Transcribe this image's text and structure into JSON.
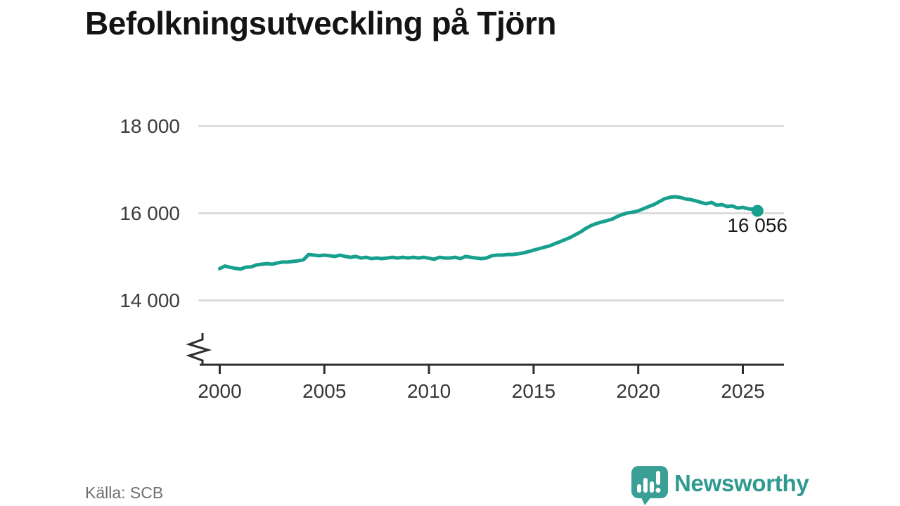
{
  "title": "Befolkningsutveckling på Tjörn",
  "source": "Källa: SCB",
  "branding": {
    "name": "Newsworthy",
    "wordmark_color": "#2e9a8f",
    "icon_color": "#3aa095",
    "icon": "speech-bubble-bar-chart-icon"
  },
  "chart_data": {
    "type": "line",
    "title": "Befolkningsutveckling på Tjörn",
    "xlabel": "",
    "ylabel": "",
    "grid": "horizontal",
    "axis_break": "y-axis broken below 14 000 (zigzag marker at axis start)",
    "xlim": [
      1999,
      2027
    ],
    "ylim": [
      13800,
      18300
    ],
    "line_color": "#17a08e",
    "grid_color": "#dcdcdc",
    "axis_color": "#2e2e2e",
    "end_label": "16 056",
    "end_value": 16056,
    "y_ticks": [
      {
        "value": 14000,
        "label": "14 000"
      },
      {
        "value": 16000,
        "label": "16 000"
      },
      {
        "value": 18000,
        "label": "18 000"
      }
    ],
    "x_ticks": [
      {
        "value": 2000,
        "label": "2000"
      },
      {
        "value": 2005,
        "label": "2005"
      },
      {
        "value": 2010,
        "label": "2010"
      },
      {
        "value": 2015,
        "label": "2015"
      },
      {
        "value": 2020,
        "label": "2020"
      },
      {
        "value": 2025,
        "label": "2025"
      }
    ],
    "series": [
      {
        "name": "Befolkning på Tjörn",
        "points": [
          [
            2000,
            14730
          ],
          [
            2000.25,
            14790
          ],
          [
            2000.5,
            14760
          ],
          [
            2000.75,
            14735
          ],
          [
            2001,
            14720
          ],
          [
            2001.25,
            14765
          ],
          [
            2001.5,
            14770
          ],
          [
            2001.75,
            14815
          ],
          [
            2002,
            14830
          ],
          [
            2002.25,
            14845
          ],
          [
            2002.5,
            14830
          ],
          [
            2002.75,
            14860
          ],
          [
            2003,
            14880
          ],
          [
            2003.25,
            14880
          ],
          [
            2003.5,
            14895
          ],
          [
            2003.75,
            14910
          ],
          [
            2004,
            14930
          ],
          [
            2004.25,
            15055
          ],
          [
            2004.5,
            15040
          ],
          [
            2004.75,
            15025
          ],
          [
            2005,
            15040
          ],
          [
            2005.25,
            15025
          ],
          [
            2005.5,
            15010
          ],
          [
            2005.75,
            15040
          ],
          [
            2006,
            15010
          ],
          [
            2006.25,
            14990
          ],
          [
            2006.5,
            15010
          ],
          [
            2006.75,
            14975
          ],
          [
            2007,
            14990
          ],
          [
            2007.25,
            14960
          ],
          [
            2007.5,
            14975
          ],
          [
            2007.75,
            14960
          ],
          [
            2008,
            14975
          ],
          [
            2008.25,
            14990
          ],
          [
            2008.5,
            14975
          ],
          [
            2008.75,
            14990
          ],
          [
            2009,
            14975
          ],
          [
            2009.25,
            14990
          ],
          [
            2009.5,
            14975
          ],
          [
            2009.75,
            14990
          ],
          [
            2010,
            14970
          ],
          [
            2010.25,
            14945
          ],
          [
            2010.5,
            14990
          ],
          [
            2010.75,
            14975
          ],
          [
            2011,
            14975
          ],
          [
            2011.25,
            14990
          ],
          [
            2011.5,
            14960
          ],
          [
            2011.75,
            15010
          ],
          [
            2012,
            14990
          ],
          [
            2012.25,
            14975
          ],
          [
            2012.5,
            14960
          ],
          [
            2012.75,
            14975
          ],
          [
            2013,
            15025
          ],
          [
            2013.25,
            15040
          ],
          [
            2013.5,
            15040
          ],
          [
            2013.75,
            15055
          ],
          [
            2014,
            15055
          ],
          [
            2014.25,
            15070
          ],
          [
            2014.5,
            15090
          ],
          [
            2014.75,
            15120
          ],
          [
            2015,
            15155
          ],
          [
            2015.25,
            15185
          ],
          [
            2015.5,
            15220
          ],
          [
            2015.75,
            15250
          ],
          [
            2016,
            15300
          ],
          [
            2016.25,
            15345
          ],
          [
            2016.5,
            15395
          ],
          [
            2016.75,
            15445
          ],
          [
            2017,
            15510
          ],
          [
            2017.25,
            15575
          ],
          [
            2017.5,
            15655
          ],
          [
            2017.75,
            15720
          ],
          [
            2018,
            15765
          ],
          [
            2018.25,
            15800
          ],
          [
            2018.5,
            15830
          ],
          [
            2018.75,
            15865
          ],
          [
            2019,
            15925
          ],
          [
            2019.25,
            15975
          ],
          [
            2019.5,
            16010
          ],
          [
            2019.75,
            16025
          ],
          [
            2020,
            16055
          ],
          [
            2020.25,
            16105
          ],
          [
            2020.5,
            16155
          ],
          [
            2020.75,
            16200
          ],
          [
            2021,
            16265
          ],
          [
            2021.25,
            16330
          ],
          [
            2021.5,
            16365
          ],
          [
            2021.75,
            16380
          ],
          [
            2022,
            16365
          ],
          [
            2022.25,
            16330
          ],
          [
            2022.5,
            16315
          ],
          [
            2022.75,
            16285
          ],
          [
            2023,
            16250
          ],
          [
            2023.25,
            16220
          ],
          [
            2023.5,
            16250
          ],
          [
            2023.75,
            16185
          ],
          [
            2024,
            16200
          ],
          [
            2024.25,
            16155
          ],
          [
            2024.5,
            16170
          ],
          [
            2024.75,
            16120
          ],
          [
            2025,
            16135
          ],
          [
            2025.25,
            16105
          ],
          [
            2025.5,
            16090
          ],
          [
            2025.7,
            16056
          ]
        ]
      }
    ]
  }
}
